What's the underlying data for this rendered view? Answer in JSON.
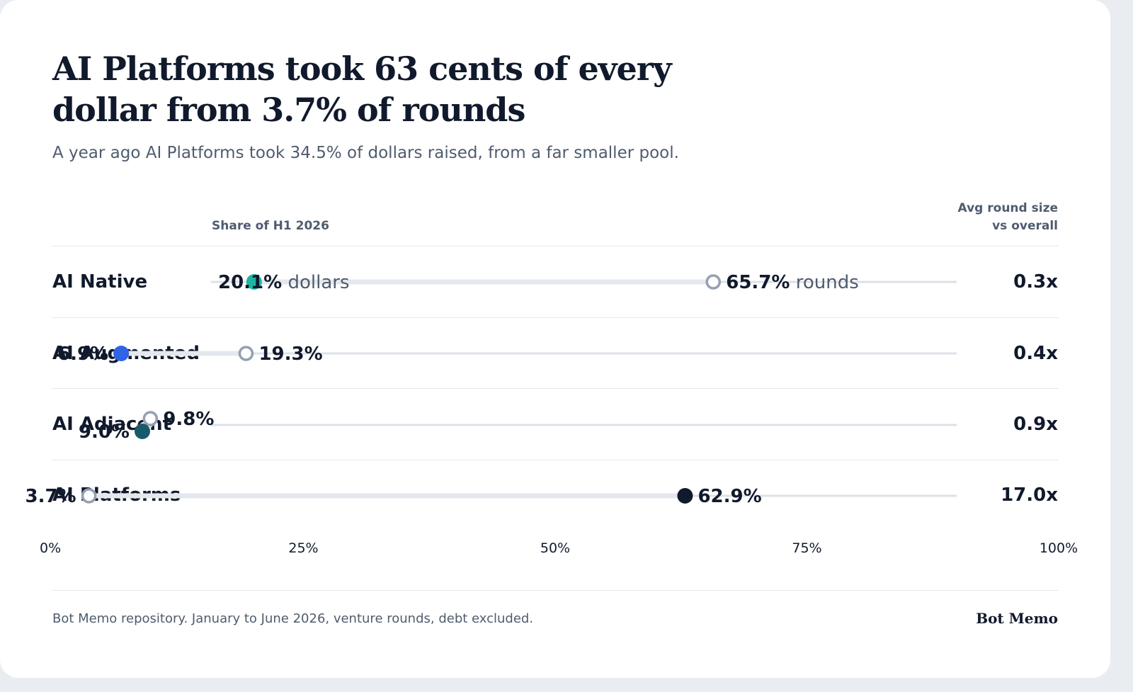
{
  "header": {
    "title_line1": "AI Platforms took 63 cents of every",
    "title_line2": "dollar from 3.7% of rounds",
    "subtitle": "A year ago AI Platforms took 34.5% of dollars raised, from a far smaller pool."
  },
  "columns": {
    "share": "Share of H1 2026",
    "avg_line1": "Avg round size",
    "avg_line2": "vs overall"
  },
  "chart_data": {
    "type": "scatter",
    "title": "AI Platforms took 63 cents of every dollar from 3.7% of rounds",
    "subtitle": "A year ago AI Platforms took 34.5% of dollars raised, from a far smaller pool.",
    "xlim": [
      0,
      100
    ],
    "x_ticks": [
      "0%",
      "25%",
      "50%",
      "75%",
      "100%"
    ],
    "x_tick_values": [
      0,
      25,
      50,
      75,
      100
    ],
    "categories": [
      "AI Native",
      "AI Augmented",
      "AI Adjacent",
      "AI Platforms"
    ],
    "series": [
      {
        "name": "dollars",
        "values": [
          20.1,
          6.9,
          9.0,
          62.9
        ]
      },
      {
        "name": "rounds",
        "values": [
          65.7,
          19.3,
          9.8,
          3.7
        ]
      }
    ],
    "value_labels": {
      "dollars": [
        "20.1%",
        "6.9%",
        "9.0%",
        "62.9%"
      ],
      "rounds": [
        "65.7%",
        "19.3%",
        "9.8%",
        "3.7%"
      ]
    },
    "dollar_colors": [
      "#1db5a0",
      "#2f63e8",
      "#175a6b",
      "#111a2c"
    ],
    "rounds_marker_color": "#94a1b2",
    "avg_round_size_vs_overall": [
      "0.3x",
      "0.4x",
      "0.9x",
      "17.0x"
    ]
  },
  "footer": {
    "source": "Bot Memo repository. January to June 2026, venture rounds, debt excluded.",
    "brand": "Bot Memo"
  }
}
